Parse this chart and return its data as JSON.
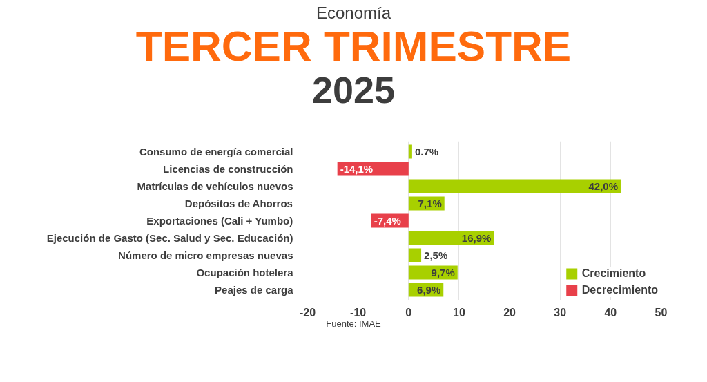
{
  "chart_data": {
    "type": "bar",
    "orientation": "horizontal",
    "title": "TERCER TRIMESTRE",
    "subtitle": "2025",
    "annotations": [
      "Economía",
      "Fuente: IMAE"
    ],
    "categories": [
      "Consumo de energía comercial",
      "Licencias de construcción",
      "Matrículas de vehículos nuevos",
      "Depósitos de Ahorros",
      "Exportaciones (Cali + Yumbo)",
      "Ejecución de Gasto (Sec. Salud y Sec. Educación)",
      "Número de micro empresas nuevas",
      "Ocupación hotelera",
      "Peajes de carga"
    ],
    "series": [
      {
        "name": "Crecimiento",
        "color": "#a8d000",
        "values": [
          0.7,
          null,
          42.0,
          7.1,
          null,
          16.9,
          2.5,
          9.7,
          6.9
        ],
        "value_labels": [
          "0.7%",
          null,
          "42,0%",
          "7,1%",
          null,
          "16,9%",
          "2,5%",
          "9,7%",
          "6,9%"
        ]
      },
      {
        "name": "Decrecimiento",
        "color": "#e8404a",
        "values": [
          null,
          -14.1,
          null,
          null,
          -7.4,
          null,
          null,
          null,
          null
        ],
        "value_labels": [
          null,
          "-14,1%",
          null,
          null,
          "-7,4%",
          null,
          null,
          null,
          null
        ]
      }
    ],
    "xlim": [
      -20,
      50
    ],
    "xticks": [
      -20,
      -10,
      0,
      10,
      20,
      30,
      40,
      50
    ],
    "grid": "x",
    "legend": "bottom right"
  }
}
